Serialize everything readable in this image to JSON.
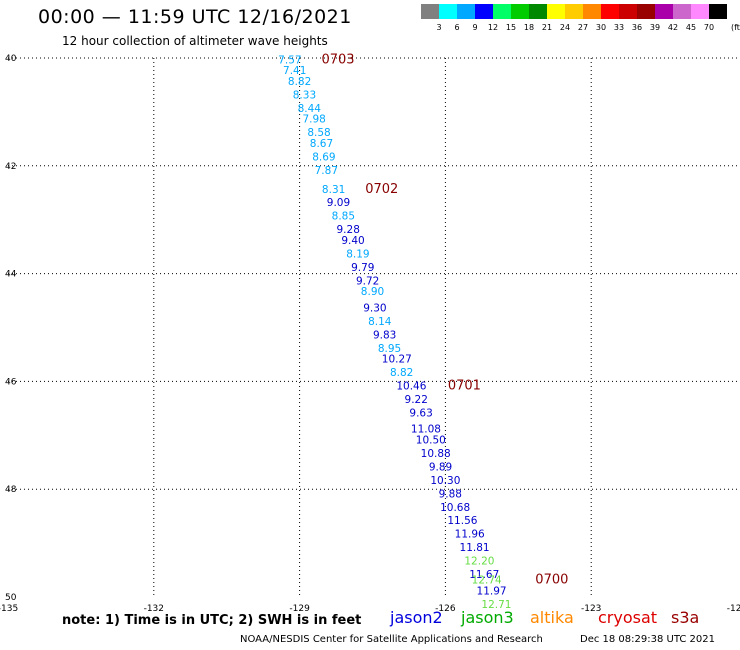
{
  "header": {
    "title": "00:00 — 11:59 UTC 12/16/2021",
    "subtitle": "12 hour collection of altimeter wave heights"
  },
  "legend": {
    "unit": "(ft)",
    "colors": [
      "#808080",
      "#00ffff",
      "#00a8ff",
      "#0000ff",
      "#00ff66",
      "#00cc00",
      "#008800",
      "#ffff00",
      "#ffcc00",
      "#ff8800",
      "#ff0000",
      "#cc0000",
      "#990000",
      "#aa00aa",
      "#cc66cc",
      "#ff88ff",
      "#000000"
    ],
    "labels": [
      "3",
      "6",
      "9",
      "12",
      "15",
      "18",
      "21",
      "24",
      "27",
      "30",
      "33",
      "36",
      "39",
      "42",
      "45",
      "70"
    ]
  },
  "axes": {
    "lon_labels": [
      "-135",
      "-132",
      "-129",
      "-126",
      "-123",
      "-120"
    ],
    "lat_labels": [
      "40",
      "42",
      "44",
      "46",
      "48",
      "50"
    ]
  },
  "chart_data": {
    "type": "scatter",
    "x_label_unit": "longitude",
    "y_label_unit": "latitude",
    "xlim": [
      -135,
      -120
    ],
    "ylim": [
      40,
      50
    ],
    "points": [
      {
        "lon": -129.2,
        "lat": 40.1,
        "v": "7.57",
        "c": "#00a8ff"
      },
      {
        "lon": -129.1,
        "lat": 40.3,
        "v": "7.41",
        "c": "#00a8ff"
      },
      {
        "lon": -129.0,
        "lat": 40.5,
        "v": "8.82",
        "c": "#00a8ff"
      },
      {
        "lon": -128.9,
        "lat": 40.75,
        "v": "8.33",
        "c": "#00a8ff"
      },
      {
        "lon": -128.8,
        "lat": 41.0,
        "v": "8.44",
        "c": "#00a8ff"
      },
      {
        "lon": -128.7,
        "lat": 41.2,
        "v": "7.98",
        "c": "#00a8ff"
      },
      {
        "lon": -128.6,
        "lat": 41.45,
        "v": "8.58",
        "c": "#00a8ff"
      },
      {
        "lon": -128.55,
        "lat": 41.65,
        "v": "8.67",
        "c": "#00a8ff"
      },
      {
        "lon": -128.5,
        "lat": 41.9,
        "v": "8.69",
        "c": "#00a8ff"
      },
      {
        "lon": -128.45,
        "lat": 42.15,
        "v": "7.87",
        "c": "#00a8ff"
      },
      {
        "lon": -128.3,
        "lat": 42.5,
        "v": "8.31",
        "c": "#00a8ff"
      },
      {
        "lon": -128.2,
        "lat": 42.75,
        "v": "9.09",
        "c": "#0000cc"
      },
      {
        "lon": -128.1,
        "lat": 43.0,
        "v": "8.85",
        "c": "#00a8ff"
      },
      {
        "lon": -128.0,
        "lat": 43.25,
        "v": "9.28",
        "c": "#0000cc"
      },
      {
        "lon": -127.9,
        "lat": 43.45,
        "v": "9.40",
        "c": "#0000cc"
      },
      {
        "lon": -127.8,
        "lat": 43.7,
        "v": "8.19",
        "c": "#00a8ff"
      },
      {
        "lon": -127.7,
        "lat": 43.95,
        "v": "9.79",
        "c": "#0000cc"
      },
      {
        "lon": -127.6,
        "lat": 44.2,
        "v": "9.72",
        "c": "#0000cc"
      },
      {
        "lon": -127.5,
        "lat": 44.4,
        "v": "8.90",
        "c": "#00a8ff"
      },
      {
        "lon": -127.45,
        "lat": 44.7,
        "v": "9.30",
        "c": "#0000cc"
      },
      {
        "lon": -127.35,
        "lat": 44.95,
        "v": "8.14",
        "c": "#00a8ff"
      },
      {
        "lon": -127.25,
        "lat": 45.2,
        "v": "9.83",
        "c": "#0000cc"
      },
      {
        "lon": -127.15,
        "lat": 45.45,
        "v": "8.95",
        "c": "#00a8ff"
      },
      {
        "lon": -127.0,
        "lat": 45.65,
        "v": "10.27",
        "c": "#0000cc"
      },
      {
        "lon": -126.9,
        "lat": 45.9,
        "v": "8.82",
        "c": "#00a8ff"
      },
      {
        "lon": -126.7,
        "lat": 46.15,
        "v": "10.46",
        "c": "#0000cc"
      },
      {
        "lon": -126.6,
        "lat": 46.4,
        "v": "9.22",
        "c": "#0000cc"
      },
      {
        "lon": -126.5,
        "lat": 46.65,
        "v": "9.63",
        "c": "#0000cc"
      },
      {
        "lon": -126.4,
        "lat": 46.95,
        "v": "11.08",
        "c": "#0000cc"
      },
      {
        "lon": -126.3,
        "lat": 47.15,
        "v": "10.50",
        "c": "#0000cc"
      },
      {
        "lon": -126.2,
        "lat": 47.4,
        "v": "10.88",
        "c": "#0000cc"
      },
      {
        "lon": -126.1,
        "lat": 47.65,
        "v": "9.89",
        "c": "#0000cc"
      },
      {
        "lon": -126.0,
        "lat": 47.9,
        "v": "10.30",
        "c": "#0000cc"
      },
      {
        "lon": -125.9,
        "lat": 48.15,
        "v": "9.88",
        "c": "#0000cc"
      },
      {
        "lon": -125.8,
        "lat": 48.4,
        "v": "10.68",
        "c": "#0000cc"
      },
      {
        "lon": -125.65,
        "lat": 48.65,
        "v": "11.56",
        "c": "#0000cc"
      },
      {
        "lon": -125.5,
        "lat": 48.9,
        "v": "11.96",
        "c": "#0000cc"
      },
      {
        "lon": -125.4,
        "lat": 49.15,
        "v": "11.81",
        "c": "#0000cc"
      },
      {
        "lon": -125.3,
        "lat": 49.4,
        "v": "12.20",
        "c": "#66dd44"
      },
      {
        "lon": -125.2,
        "lat": 49.65,
        "v": "11.67",
        "c": "#0000cc"
      },
      {
        "lon": -125.15,
        "lat": 49.75,
        "v": "12.74",
        "c": "#66dd44"
      },
      {
        "lon": -125.05,
        "lat": 49.95,
        "v": "11.97",
        "c": "#0000cc"
      },
      {
        "lon": -124.95,
        "lat": 50.2,
        "v": "12.71",
        "c": "#66dd44"
      }
    ],
    "time_labels": [
      {
        "lon": -128.55,
        "lat": 40.1,
        "v": "0703"
      },
      {
        "lon": -127.65,
        "lat": 42.5,
        "v": "0702"
      },
      {
        "lon": -125.95,
        "lat": 46.15,
        "v": "0701"
      },
      {
        "lon": -124.15,
        "lat": 49.75,
        "v": "0700"
      }
    ]
  },
  "footer": {
    "note": "note: 1) Time is in UTC; 2) SWH is in feet",
    "satellites": [
      {
        "name": "jason2",
        "color": "#0000dd"
      },
      {
        "name": "jason3",
        "color": "#00aa00"
      },
      {
        "name": "altika",
        "color": "#ff8800"
      },
      {
        "name": "cryosat",
        "color": "#dd0000"
      },
      {
        "name": "s3a",
        "color": "#990000"
      }
    ],
    "credit": "NOAA/NESDIS Center for Satellite Applications and Research",
    "timestamp": "Dec 18 08:29:38 UTC 2021"
  }
}
